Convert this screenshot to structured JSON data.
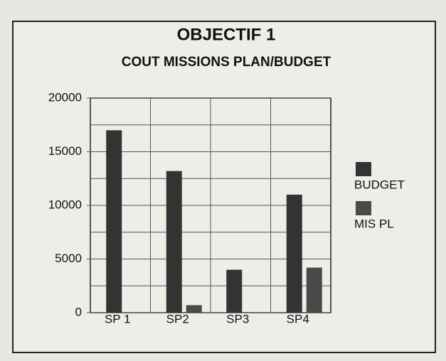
{
  "chart_data": {
    "type": "bar",
    "title": "OBJECTIF 1",
    "subtitle": "COUT MISSIONS PLAN/BUDGET",
    "categories": [
      "SP 1",
      "SP2",
      "SP3",
      "SP4"
    ],
    "series": [
      {
        "name": "BUDGET",
        "color": "#333333",
        "values": [
          17000,
          13200,
          4000,
          11000
        ]
      },
      {
        "name": "MIS PL",
        "color": "#4a4a4a",
        "values": [
          0,
          700,
          0,
          4200
        ]
      }
    ],
    "ylim": [
      0,
      20000
    ],
    "yticks": [
      0,
      5000,
      10000,
      15000,
      20000
    ],
    "minor_grid": [
      2500,
      7500,
      12500,
      17500
    ],
    "grid": true,
    "legend": "right"
  }
}
